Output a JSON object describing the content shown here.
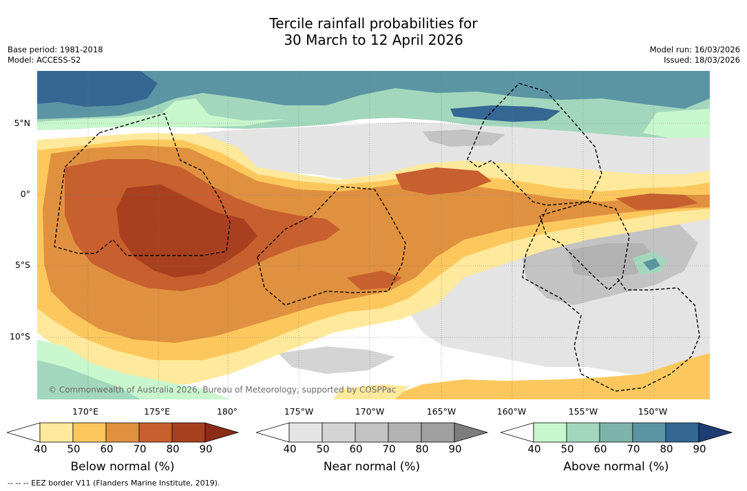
{
  "title": {
    "line1": "Tercile rainfall probabilities for",
    "line2": "30 March to 12 April 2026"
  },
  "meta": {
    "base_period": "Base period: 1981-2018",
    "model": "Model: ACCESS-S2",
    "model_run": "Model run: 16/03/2026",
    "issued": "Issued: 18/03/2026"
  },
  "map": {
    "copyright": "© Commonwealth of Australia 2026, Bureau of Meteorology, supported by COSPPac",
    "lat_labels": [
      "5°N",
      "0°",
      "5°S",
      "10°S"
    ],
    "lon_labels": [
      "170°E",
      "175°E",
      "180°",
      "175°W",
      "170°W",
      "165°W",
      "160°W",
      "155°W",
      "150°W"
    ],
    "colors": {
      "ocean_white": "#ffffff",
      "grid": "#777777",
      "eez_border": "#000000"
    }
  },
  "legends": [
    {
      "title": "Below normal (%)",
      "ticks": [
        "40",
        "50",
        "60",
        "70",
        "80",
        "90"
      ],
      "colors": [
        "#ffffff",
        "#fee99c",
        "#fcc85d",
        "#e0913f",
        "#c85f2e",
        "#a8401f",
        "#8a2c18"
      ]
    },
    {
      "title": "Near normal (%)",
      "ticks": [
        "40",
        "50",
        "60",
        "70",
        "80",
        "90"
      ],
      "colors": [
        "#ffffff",
        "#e4e4e4",
        "#d4d4d4",
        "#c3c3c3",
        "#b2b2b2",
        "#a0a0a0",
        "#7d7d7d"
      ]
    },
    {
      "title": "Above normal (%)",
      "ticks": [
        "40",
        "50",
        "60",
        "70",
        "80",
        "90"
      ],
      "colors": [
        "#ffffff",
        "#c9f7cd",
        "#a3d7bd",
        "#7db3aa",
        "#5b95a3",
        "#346792",
        "#1e3d73"
      ]
    }
  ],
  "footer": "--  --  -- EEZ border V11 (Flanders Marine Institute, 2019)."
}
